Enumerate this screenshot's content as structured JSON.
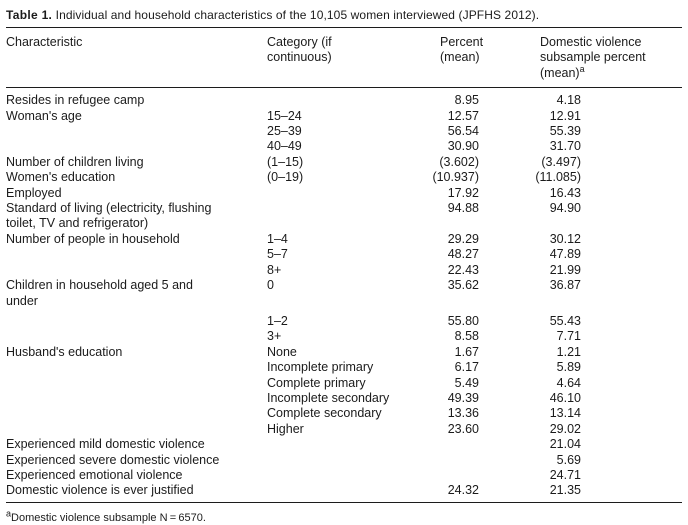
{
  "title": {
    "label": "Table 1.",
    "text": "Individual and household characteristics of the 10,105 women interviewed (JPFHS 2012)."
  },
  "header": {
    "characteristic": "Characteristic",
    "category": "Category (if\ncontinuous)",
    "percent": "Percent\n(mean)",
    "dv_line1": "Domestic violence",
    "dv_line2": "subsample percent (mean)",
    "dv_superscript": "a"
  },
  "rows": [
    {
      "characteristic": "Resides in refugee camp",
      "category": "",
      "percent": "8.95",
      "dv": "4.18"
    },
    {
      "characteristic": "Woman's age",
      "category": "15–24",
      "percent": "12.57",
      "dv": "12.91"
    },
    {
      "characteristic": "",
      "category": "25–39",
      "percent": "56.54",
      "dv": "55.39"
    },
    {
      "characteristic": "",
      "category": "40–49",
      "percent": "30.90",
      "dv": "31.70"
    },
    {
      "characteristic": "Number of children living",
      "category": "(1–15)",
      "percent": "(3.602)",
      "dv": "(3.497)"
    },
    {
      "characteristic": "Women's education",
      "category": "(0–19)",
      "percent": "(10.937)",
      "dv": "(11.085)"
    },
    {
      "characteristic": "Employed",
      "category": "",
      "percent": "17.92",
      "dv": "16.43"
    },
    {
      "characteristic": "Standard of living (electricity, flushing\ntoilet, TV and refrigerator)",
      "category": "",
      "percent": "94.88",
      "dv": "94.90"
    },
    {
      "characteristic": "Number of people in household",
      "category": "1–4",
      "percent": "29.29",
      "dv": "30.12"
    },
    {
      "characteristic": "",
      "category": "5–7",
      "percent": "48.27",
      "dv": "47.89"
    },
    {
      "characteristic": "",
      "category": "8+",
      "percent": "22.43",
      "dv": "21.99"
    },
    {
      "characteristic": "Children in household aged 5 and\nunder",
      "category": "0",
      "percent": "35.62",
      "dv": "36.87"
    },
    {
      "characteristic": "",
      "category": "1–2",
      "percent": "55.80",
      "dv": "55.43",
      "gap": true
    },
    {
      "characteristic": "",
      "category": "3+",
      "percent": "8.58",
      "dv": "7.71"
    },
    {
      "characteristic": "Husband's education",
      "category": "None",
      "percent": "1.67",
      "dv": "1.21"
    },
    {
      "characteristic": "",
      "category": "Incomplete primary",
      "percent": "6.17",
      "dv": "5.89"
    },
    {
      "characteristic": "",
      "category": "Complete primary",
      "percent": "5.49",
      "dv": "4.64"
    },
    {
      "characteristic": "",
      "category": "Incomplete secondary",
      "percent": "49.39",
      "dv": "46.10"
    },
    {
      "characteristic": "",
      "category": "Complete secondary",
      "percent": "13.36",
      "dv": "13.14"
    },
    {
      "characteristic": "",
      "category": "Higher",
      "percent": "23.60",
      "dv": "29.02"
    },
    {
      "characteristic": "Experienced mild domestic violence",
      "category": "",
      "percent": "",
      "dv": "21.04"
    },
    {
      "characteristic": "Experienced severe domestic violence",
      "category": "",
      "percent": "",
      "dv": "5.69"
    },
    {
      "characteristic": "Experienced emotional violence",
      "category": "",
      "percent": "",
      "dv": "24.71"
    },
    {
      "characteristic": "Domestic violence is ever justified",
      "category": "",
      "percent": "24.32",
      "dv": "21.35"
    }
  ],
  "footnote": {
    "superscript": "a",
    "text": "Domestic violence subsample N = 6570."
  }
}
